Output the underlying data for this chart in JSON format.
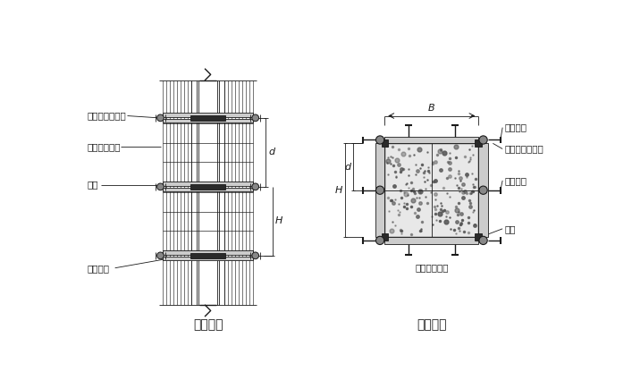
{
  "bg_color": "#ffffff",
  "line_color": "#1a1a1a",
  "title_left": "柱立面图",
  "title_right": "柱剖面图",
  "label_zhuzhui": "柱箍（圆钢管）",
  "label_shujing": "竖愣（方木）",
  "label_mianban": "面板",
  "label_duila_top": "对拉螺栓",
  "label_duila_mid": "对拉螺栓",
  "label_duila_bot": "对拉螺栓",
  "label_B": "B",
  "label_d": "d",
  "label_H": "H",
  "font_size_label": 7.5,
  "font_size_title": 10,
  "font_size_dim": 8,
  "lw_thin": 0.6,
  "lw_med": 1.0,
  "lw_thick": 1.5,
  "gray_dark": "#2a2a2a",
  "gray_med": "#888888",
  "gray_light": "#cccccc",
  "gray_fill": "#aaaaaa",
  "concrete_fill": "#e8e8e8"
}
